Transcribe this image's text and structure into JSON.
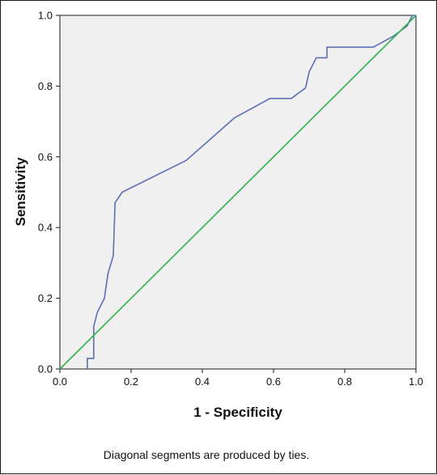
{
  "chart_data": {
    "type": "line",
    "xlabel": "1 - Specificity",
    "ylabel": "Sensitivity",
    "xlim": [
      0,
      1
    ],
    "ylim": [
      0,
      1
    ],
    "x_ticks": [
      "0.0",
      "0.2",
      "0.4",
      "0.6",
      "0.8",
      "1.0"
    ],
    "y_ticks": [
      "0.0",
      "0.2",
      "0.4",
      "0.6",
      "0.8",
      "1.0"
    ],
    "grid": false,
    "background_color": "#f0f0f0",
    "footnote": "Diagonal segments are produced by ties.",
    "series": [
      {
        "color": "#5b6fb5",
        "x": [
          0.077,
          0.077,
          0.095,
          0.095,
          0.105,
          0.115,
          0.125,
          0.135,
          0.135,
          0.15,
          0.155,
          0.155,
          0.175,
          0.355,
          0.49,
          0.59,
          0.65,
          0.69,
          0.7,
          0.72,
          0.735,
          0.75,
          0.75,
          0.88,
          0.935,
          0.975,
          0.99,
          1.0
        ],
        "y": [
          0.0,
          0.03,
          0.03,
          0.12,
          0.16,
          0.18,
          0.2,
          0.27,
          0.27,
          0.32,
          0.47,
          0.47,
          0.5,
          0.59,
          0.71,
          0.765,
          0.765,
          0.795,
          0.84,
          0.88,
          0.88,
          0.88,
          0.91,
          0.91,
          0.94,
          0.97,
          1.0,
          1.0
        ]
      },
      {
        "color": "#2db34a",
        "x": [
          0,
          1
        ],
        "y": [
          0,
          1
        ]
      }
    ]
  }
}
